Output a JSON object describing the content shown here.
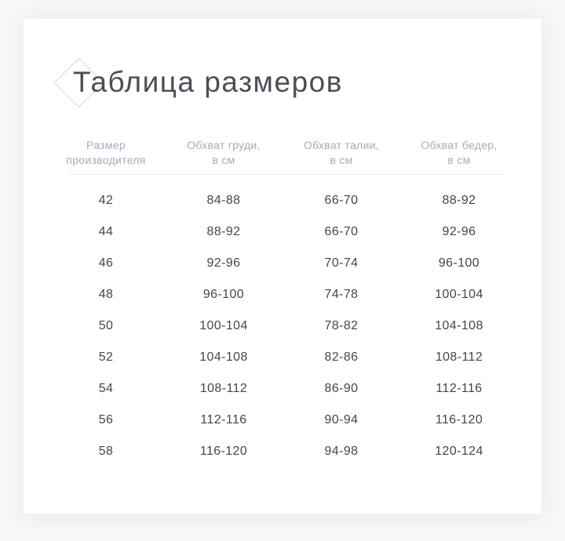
{
  "page": {
    "title": "Таблица размеров"
  },
  "table": {
    "headers": [
      {
        "line1": "Размер",
        "line2": "производителя"
      },
      {
        "line1": "Обхват груди,",
        "line2": "в см"
      },
      {
        "line1": "Обхват талии,",
        "line2": "в см"
      },
      {
        "line1": "Обхват бедер,",
        "line2": "в см"
      }
    ],
    "rows": [
      {
        "size": "42",
        "chest": "84-88",
        "waist": "66-70",
        "hips": "88-92"
      },
      {
        "size": "44",
        "chest": "88-92",
        "waist": "66-70",
        "hips": "92-96"
      },
      {
        "size": "46",
        "chest": "92-96",
        "waist": "70-74",
        "hips": "96-100"
      },
      {
        "size": "48",
        "chest": "96-100",
        "waist": "74-78",
        "hips": "100-104"
      },
      {
        "size": "50",
        "chest": "100-104",
        "waist": "78-82",
        "hips": "104-108"
      },
      {
        "size": "52",
        "chest": "104-108",
        "waist": "82-86",
        "hips": "108-112"
      },
      {
        "size": "54",
        "chest": "108-112",
        "waist": "86-90",
        "hips": "112-116"
      },
      {
        "size": "56",
        "chest": "112-116",
        "waist": "90-94",
        "hips": "116-120"
      },
      {
        "size": "58",
        "chest": "116-120",
        "waist": "94-98",
        "hips": "120-124"
      }
    ]
  },
  "colors": {
    "page_bg": "#f7f7f8",
    "card_bg": "#ffffff",
    "title_text": "#4a4e57",
    "header_text": "#a6abb7",
    "body_text": "#42464f",
    "diamond_accent": "#f1d3c5",
    "divider": "#eaeaef"
  }
}
